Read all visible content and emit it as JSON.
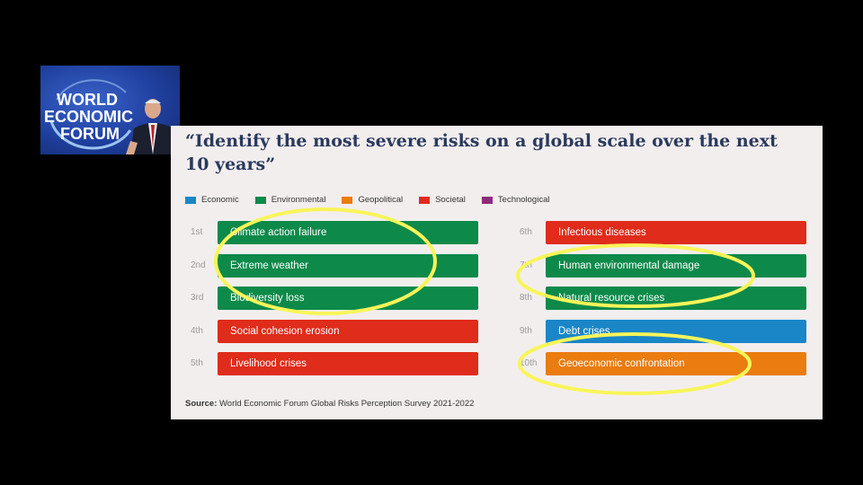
{
  "logo": {
    "lines": [
      "WORLD",
      "ECONOMIC",
      "FORUM"
    ]
  },
  "title": "“Identify the most severe risks on a global scale over the next 10 years”",
  "colors": {
    "Economic": "#1a86c8",
    "Environmental": "#0d8a4a",
    "Geopolitical": "#ea7c10",
    "Societal": "#e02c1a",
    "Technological": "#8e2a7c",
    "highlight": "#f8f559"
  },
  "chart_data": {
    "type": "table",
    "legend": [
      "Economic",
      "Environmental",
      "Geopolitical",
      "Societal",
      "Technological"
    ],
    "risks": [
      {
        "rank": "1st",
        "label": "Climate action failure",
        "category": "Environmental"
      },
      {
        "rank": "2nd",
        "label": "Extreme weather",
        "category": "Environmental"
      },
      {
        "rank": "3rd",
        "label": "Biodiversity loss",
        "category": "Environmental"
      },
      {
        "rank": "4th",
        "label": "Social cohesion erosion",
        "category": "Societal"
      },
      {
        "rank": "5th",
        "label": "Livelihood crises",
        "category": "Societal"
      },
      {
        "rank": "6th",
        "label": "Infectious diseases",
        "category": "Societal"
      },
      {
        "rank": "7th",
        "label": "Human environmental damage",
        "category": "Environmental"
      },
      {
        "rank": "8th",
        "label": "Natural resource crises",
        "category": "Environmental"
      },
      {
        "rank": "9th",
        "label": "Debt crises",
        "category": "Economic"
      },
      {
        "rank": "10th",
        "label": "Geoeconomic confrontation",
        "category": "Geopolitical"
      }
    ]
  },
  "source": {
    "label": "Source:",
    "text": "World Economic Forum Global Risks Perception Survey 2021-2022"
  }
}
